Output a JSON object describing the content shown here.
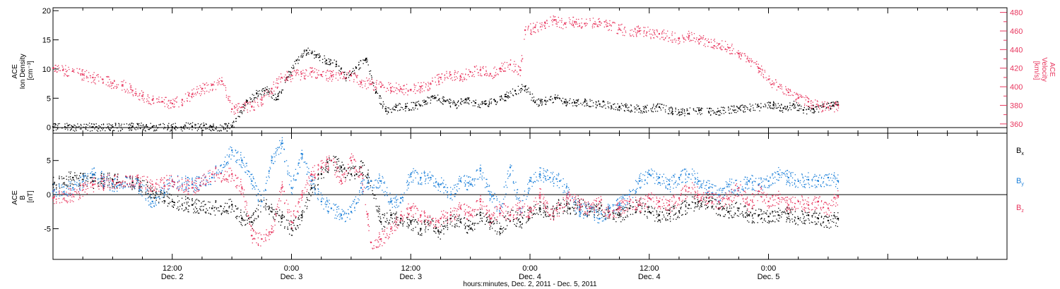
{
  "x_axis": {
    "title": "hours:minutes, Dec.  2, 2011 - Dec.  5, 2011",
    "range_hours": [
      0,
      96
    ],
    "ticks": [
      {
        "hour": 12,
        "time": "12:00",
        "day": "Dec. 2"
      },
      {
        "hour": 24,
        "time": "0:00",
        "day": "Dec. 3"
      },
      {
        "hour": 36,
        "time": "12:00",
        "day": "Dec. 3"
      },
      {
        "hour": 48,
        "time": "0:00",
        "day": "Dec. 4"
      },
      {
        "hour": 60,
        "time": "12:00",
        "day": "Dec. 4"
      },
      {
        "hour": 72,
        "time": "0:00",
        "day": "Dec. 5"
      }
    ]
  },
  "colors": {
    "axis": "#000000",
    "density": "#000000",
    "velocity": "#e8375f",
    "bx": "#000000",
    "by": "#1a7fd9",
    "bz": "#e8375f"
  },
  "chart_data": [
    {
      "type": "scatter",
      "panel": "top",
      "left_axis": {
        "label_lines": [
          "ACE",
          "Ion Density",
          "[cm⁻³]"
        ],
        "ylim": [
          -1,
          20.5
        ],
        "ticks": [
          0,
          5,
          10,
          15,
          20
        ]
      },
      "right_axis": {
        "label_lines": [
          "ACE",
          "Velocity",
          "[km/s]"
        ],
        "ylim": [
          350,
          485
        ],
        "ticks": [
          360,
          380,
          400,
          420,
          440,
          460,
          480
        ]
      },
      "series": [
        {
          "key": "density",
          "axis": "left",
          "x": [
            0,
            2,
            4,
            6,
            8,
            10,
            12,
            14,
            16,
            18,
            19.5,
            20.5,
            21.5,
            22.5,
            23.5,
            24.5,
            25.5,
            26.5,
            27.5,
            28.5,
            29.5,
            30.5,
            31.5,
            32.5,
            33.5,
            34.5,
            35.5,
            36.5,
            37.5,
            38.5,
            39.5,
            40.5,
            41.5,
            42.5,
            43.5,
            44.5,
            45.5,
            46.5,
            47.5,
            48.5,
            49.5,
            50.5,
            51.5,
            52.5,
            53.5,
            55,
            57,
            59,
            61,
            63,
            65,
            67,
            69,
            71,
            72.5,
            73.5,
            74.5,
            75.5,
            76.5,
            77.5,
            78.5,
            79
          ],
          "y": [
            0.1,
            0.1,
            0.1,
            0.1,
            0.2,
            0.1,
            0.1,
            0.2,
            0.1,
            0.1,
            4.5,
            5.8,
            6.5,
            4.8,
            8.5,
            11.5,
            13.2,
            12.4,
            11.5,
            10.8,
            8.5,
            10.2,
            11.8,
            6,
            2.8,
            3.5,
            3.6,
            3.8,
            4.5,
            5.1,
            4.5,
            3.8,
            4.8,
            4.2,
            4,
            4.5,
            5.3,
            6.3,
            7,
            4.3,
            4.6,
            5.1,
            4.4,
            4.2,
            4.4,
            4,
            3.6,
            3.2,
            3.5,
            2.6,
            2.9,
            2.8,
            3.3,
            3.6,
            3.8,
            3.3,
            4,
            3,
            3.2,
            3.6,
            3.8,
            3.9
          ]
        },
        {
          "key": "velocity",
          "axis": "right",
          "x": [
            0,
            1,
            2,
            3,
            4,
            5,
            6,
            7,
            8,
            9,
            10,
            11,
            12,
            13,
            14,
            15,
            16,
            17,
            18,
            19,
            20,
            21,
            22,
            23,
            24,
            25,
            26,
            27,
            28,
            29,
            30,
            31,
            32,
            33,
            34,
            35,
            36,
            37,
            38,
            39,
            40,
            41,
            42,
            43,
            44,
            45,
            46,
            47,
            47.5,
            48.5,
            49.5,
            50.5,
            51.5,
            52.5,
            53.5,
            55,
            57,
            59,
            61,
            63,
            64,
            65,
            66,
            67,
            68,
            69,
            70,
            71,
            72,
            73,
            74,
            75,
            76,
            77,
            78,
            79
          ],
          "y": [
            420,
            418,
            417,
            413,
            410,
            408,
            404,
            402,
            396,
            390,
            386,
            384,
            382,
            386,
            392,
            398,
            402,
            406,
            376,
            378,
            379,
            386,
            398,
            410,
            412,
            414,
            416,
            413,
            412,
            414,
            412,
            405,
            403,
            400,
            399,
            398,
            397,
            400,
            403,
            410,
            413,
            411,
            416,
            418,
            414,
            420,
            424,
            418,
            461,
            464,
            469,
            472,
            468,
            470,
            468,
            470,
            462,
            460,
            457,
            452,
            455,
            451,
            448,
            446,
            442,
            436,
            428,
            420,
            408,
            400,
            394,
            388,
            384,
            380,
            378,
            380
          ]
        }
      ]
    },
    {
      "type": "scatter",
      "panel": "bottom",
      "left_axis": {
        "label_lines": [
          "ACE",
          "B",
          "[nT]"
        ],
        "ylim": [
          -9.5,
          9
        ],
        "ticks": [
          -5,
          0,
          5
        ]
      },
      "series": [
        {
          "key": "bx",
          "name": "Bx",
          "x": [
            0,
            2,
            4,
            6,
            8,
            10,
            12,
            14,
            16,
            18,
            19,
            20,
            21,
            22,
            23,
            24,
            25,
            26,
            27,
            28,
            29,
            30,
            31,
            32,
            33,
            34,
            35,
            36,
            37,
            38,
            39,
            40,
            41,
            42,
            43,
            44,
            45,
            46,
            47,
            48,
            49,
            50,
            51,
            52,
            53,
            54,
            55,
            56,
            57,
            58,
            59,
            60,
            61,
            62,
            63,
            64,
            65,
            66,
            67,
            68,
            69,
            70,
            71,
            72,
            73,
            74,
            75,
            76,
            77,
            78,
            79
          ],
          "y": [
            1.5,
            2.5,
            2,
            2.2,
            1.8,
            0.5,
            -1,
            -1.5,
            -2,
            -1.5,
            -3.5,
            -4,
            -1,
            -2.5,
            -3.5,
            -5,
            -3,
            1,
            3,
            5,
            4,
            3,
            4,
            2,
            -4,
            -3,
            -3.5,
            -4,
            -5,
            -4,
            -5.5,
            -3.5,
            -4,
            -5,
            -3,
            -4,
            -5,
            -3,
            -4,
            -2.5,
            -2,
            -3,
            -1.5,
            -2,
            -1.5,
            -2.5,
            -2,
            -3,
            -3,
            -2,
            -1.5,
            -2.5,
            -3,
            -2.8,
            -2.4,
            -1.5,
            -1,
            -1,
            -2,
            -2.5,
            -2,
            -3,
            -3,
            -3.2,
            -3,
            -2.8,
            -3.5,
            -3,
            -3.5,
            -3.8,
            -3.5
          ]
        },
        {
          "key": "by",
          "name": "By",
          "x": [
            0,
            2,
            4,
            6,
            8,
            10,
            12,
            14,
            16,
            18,
            19,
            20,
            21,
            22,
            23,
            24,
            25,
            26,
            27,
            28,
            29,
            30,
            31,
            32,
            33,
            34,
            35,
            36,
            37,
            38,
            39,
            40,
            41,
            42,
            43,
            44,
            45,
            46,
            47,
            48,
            49,
            50,
            51,
            52,
            53,
            54,
            55,
            56,
            57,
            58,
            59,
            60,
            61,
            62,
            63,
            64,
            65,
            66,
            67,
            68,
            69,
            70,
            71,
            72,
            73,
            74,
            75,
            76,
            77,
            78,
            79
          ],
          "y": [
            0.5,
            1,
            3,
            1.5,
            2,
            -1,
            2,
            1.5,
            2.5,
            6.5,
            5,
            2,
            -1,
            5,
            7.5,
            1,
            6,
            2,
            -1,
            -2,
            -3,
            -2.5,
            1,
            2,
            2,
            -1,
            -0.5,
            3,
            2.5,
            2.5,
            1.5,
            0,
            2,
            1.5,
            3.5,
            0,
            -2,
            4,
            -2,
            2,
            3,
            2.5,
            2,
            0,
            -2.5,
            -2,
            -3.5,
            -2,
            -1.5,
            0,
            2,
            3,
            2.5,
            1.5,
            2.5,
            3,
            2,
            1,
            0,
            1.5,
            1,
            2,
            1.5,
            2,
            3,
            2.5,
            2,
            2.2,
            2,
            2.5,
            2
          ]
        },
        {
          "key": "bz",
          "name": "Bz",
          "x": [
            0,
            2,
            4,
            6,
            8,
            10,
            12,
            14,
            16,
            18,
            19,
            20,
            21,
            22,
            23,
            24,
            25,
            26,
            27,
            28,
            29,
            30,
            31,
            32,
            33,
            34,
            35,
            36,
            37,
            38,
            39,
            40,
            41,
            42,
            43,
            44,
            45,
            46,
            47,
            48,
            49,
            50,
            51,
            52,
            53,
            54,
            55,
            56,
            57,
            58,
            59,
            60,
            61,
            62,
            63,
            64,
            65,
            66,
            67,
            68,
            69,
            70,
            71,
            72,
            73,
            74,
            75,
            76,
            77,
            78,
            79
          ],
          "y": [
            -0.5,
            0,
            1.5,
            2,
            2,
            1.5,
            2,
            1,
            3,
            3,
            1,
            -6,
            -6.5,
            -5.5,
            1,
            -4,
            0,
            3,
            4,
            5,
            2,
            5,
            3,
            -7,
            -6.5,
            -5,
            -3,
            -2,
            -3,
            -4,
            -3.5,
            -3,
            -2,
            -3,
            -1,
            -3.5,
            -2,
            -3,
            -2,
            -2.5,
            0,
            -3,
            -2,
            0,
            -1.5,
            -2,
            -1,
            -3,
            -2,
            -1,
            -1.5,
            -0.5,
            -1,
            -1.5,
            -0.5,
            1,
            0,
            -0.5,
            -1,
            -0.5,
            1,
            -1.5,
            0.5,
            -1,
            -0.5,
            -1.5,
            -1,
            -1.5,
            -1,
            -2,
            -0.2
          ]
        }
      ],
      "legend": {
        "placement": "right",
        "items": [
          {
            "key": "bx",
            "base": "B",
            "sub": "x"
          },
          {
            "key": "by",
            "base": "B",
            "sub": "y"
          },
          {
            "key": "bz",
            "base": "B",
            "sub": "z"
          }
        ]
      }
    }
  ]
}
